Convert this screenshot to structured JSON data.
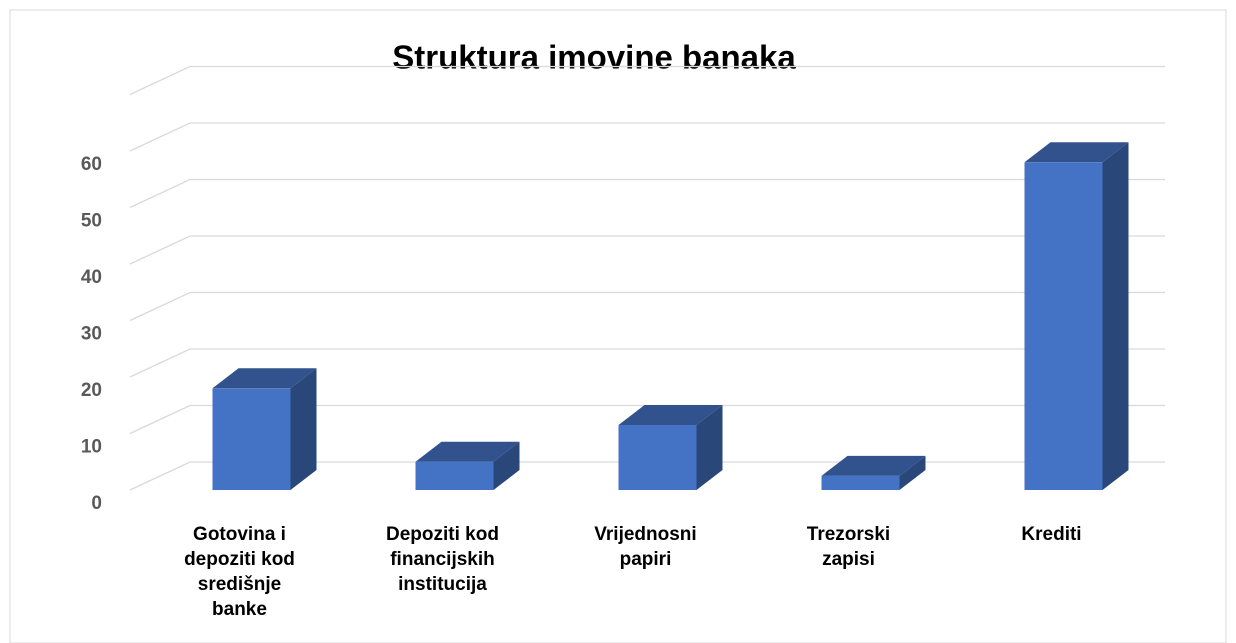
{
  "chart_data": {
    "type": "bar3d",
    "title": "Struktura imovine banaka",
    "categories": [
      "Gotovina i depoziti kod središnje banke",
      "Depoziti kod financijskih institucija",
      "Vrijednosni papiri",
      "Trezorski zapisi",
      "Krediti"
    ],
    "values": [
      18,
      5,
      11.5,
      2.5,
      58
    ],
    "color": "#4472c4",
    "ylim": [
      0,
      70
    ],
    "yticks": [
      0,
      10,
      20,
      30,
      40,
      50,
      60
    ],
    "grid": true
  }
}
